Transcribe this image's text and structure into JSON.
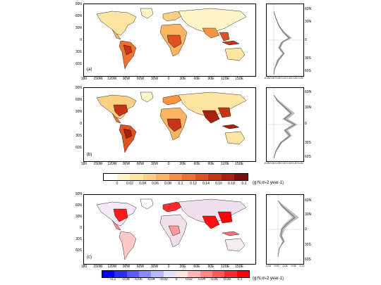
{
  "panels": [
    {
      "label": "(a)",
      "lat_ticks": [
        "90N",
        "60N",
        "30N",
        "0",
        "30S",
        "60S"
      ],
      "lon_ticks": [
        "180",
        "150W",
        "120W",
        "90W",
        "60W",
        "30W",
        "0",
        "30E",
        "60E",
        "90E",
        "120E",
        "150E"
      ],
      "profile_lat_ticks": [
        "60N",
        "30N",
        "0",
        "30S",
        "60S"
      ],
      "profile_x_ticks": [
        "-0.05",
        "0.00",
        "0.05",
        "0.10",
        "0.15",
        "0.20",
        "0.25"
      ]
    },
    {
      "label": "(b)",
      "lat_ticks": [
        "90N",
        "60N",
        "30N",
        "0",
        "30S",
        "60S"
      ],
      "lon_ticks": [
        "180",
        "150W",
        "120W",
        "90W",
        "60W",
        "30W",
        "0",
        "30E",
        "60E",
        "90E",
        "120E",
        "150E"
      ],
      "profile_lat_ticks": [
        "60N",
        "30N",
        "0",
        "30S",
        "60S"
      ],
      "profile_x_ticks": [
        "-0.05",
        "0.00",
        "0.05",
        "0.10",
        "0.15",
        "0.20",
        "0.25"
      ]
    },
    {
      "label": "(c)",
      "lat_ticks": [
        "90N",
        "60N",
        "30N",
        "0",
        "30S",
        "60S"
      ],
      "lon_ticks": [
        "180",
        "150W",
        "120W",
        "90W",
        "60W",
        "30W",
        "0",
        "30E",
        "60E",
        "90E",
        "120E",
        "150E"
      ],
      "profile_lat_ticks": [
        "60N",
        "30N",
        "0",
        "30S",
        "60S"
      ],
      "profile_x_ticks": [
        "-0.04",
        "0.00",
        "0.04",
        "0.08",
        "0.12"
      ]
    }
  ],
  "colorbar_top": {
    "labels": [
      "0",
      "0.02",
      "0.04",
      "0.06",
      "0.08",
      "0.1",
      "0.12",
      "0.14",
      "0.16",
      "0.18",
      "0.2"
    ],
    "colors": [
      "#ffffff",
      "#fff4c8",
      "#fde6a2",
      "#fdd183",
      "#fbb462",
      "#f79443",
      "#ef7131",
      "#de5120",
      "#c83417",
      "#a8200f",
      "#7d0b08"
    ],
    "unit": "(g N m-2 year-1)"
  },
  "colorbar_bottom": {
    "labels": [
      "-0.1",
      "-0.08",
      "-0.06",
      "-0.04",
      "-0.02",
      "0",
      "0.02",
      "0.04",
      "0.06",
      "0.08",
      "0.1"
    ],
    "colors": [
      "#0000ff",
      "#2b2bff",
      "#5a5aff",
      "#8989ff",
      "#b7b7ff",
      "#e4e4ff",
      "#ffe4e4",
      "#ffb7b7",
      "#ff8989",
      "#ff5a5a",
      "#ff2b2b",
      "#ff0000"
    ],
    "unit": "(g N m-2 year-1)"
  }
}
